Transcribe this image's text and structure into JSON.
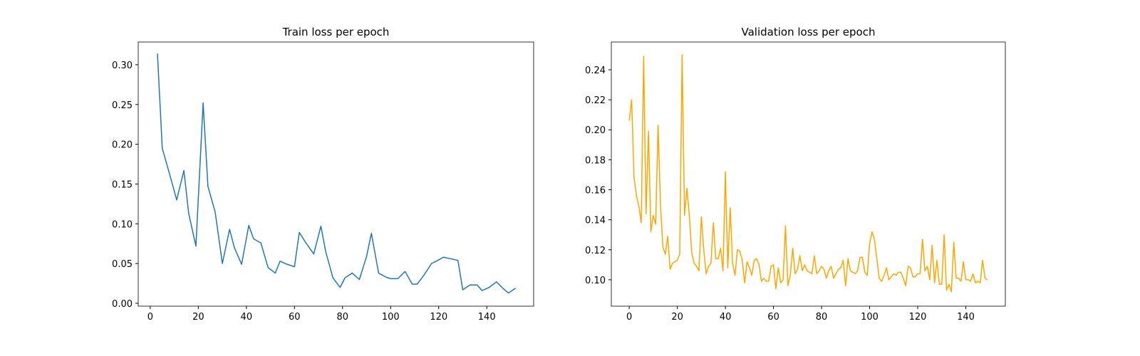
{
  "chart_data": [
    {
      "type": "line",
      "title": "Train loss per epoch",
      "color": "#1f77b4",
      "x": [
        3,
        5,
        8,
        11,
        14,
        16,
        19,
        22,
        24,
        27,
        30,
        33,
        35,
        38,
        41,
        43,
        46,
        49,
        52,
        54,
        57,
        60,
        62,
        65,
        68,
        71,
        73,
        76,
        79,
        81,
        84,
        87,
        90,
        92,
        95,
        98,
        100,
        103,
        106,
        109,
        111,
        114,
        117,
        119,
        122,
        125,
        128,
        130,
        133,
        136,
        138,
        141,
        144,
        147,
        149,
        152
      ],
      "values": [
        0.314,
        0.195,
        0.163,
        0.13,
        0.167,
        0.113,
        0.072,
        0.252,
        0.147,
        0.115,
        0.05,
        0.093,
        0.07,
        0.049,
        0.098,
        0.081,
        0.076,
        0.045,
        0.038,
        0.053,
        0.049,
        0.046,
        0.089,
        0.075,
        0.062,
        0.097,
        0.065,
        0.032,
        0.02,
        0.032,
        0.038,
        0.03,
        0.059,
        0.088,
        0.038,
        0.033,
        0.031,
        0.031,
        0.04,
        0.024,
        0.024,
        0.036,
        0.05,
        0.053,
        0.058,
        0.056,
        0.054,
        0.017,
        0.023,
        0.023,
        0.016,
        0.02,
        0.027,
        0.018,
        0.013,
        0.019
      ],
      "xlim": [
        -5,
        159.5
      ],
      "ylim": [
        -0.0036,
        0.3286
      ],
      "xticks": [
        0,
        20,
        40,
        60,
        80,
        100,
        120,
        140
      ],
      "yticks": [
        {
          "value": 0,
          "label": "0.00"
        },
        {
          "value": 0.05,
          "label": "0.05"
        },
        {
          "value": 0.1,
          "label": "0.10"
        },
        {
          "value": 0.15,
          "label": "0.15"
        },
        {
          "value": 0.2,
          "label": "0.20"
        },
        {
          "value": 0.25,
          "label": "0.25"
        },
        {
          "value": 0.3,
          "label": "0.30"
        }
      ]
    },
    {
      "type": "line",
      "title": "Validation loss per epoch",
      "color": "#ffa500",
      "x": [
        0,
        1,
        2,
        3,
        4,
        5,
        6,
        7,
        8,
        9,
        10,
        11,
        12,
        13,
        14,
        15,
        16,
        17,
        18,
        19,
        20,
        21,
        22,
        23,
        24,
        25,
        26,
        27,
        28,
        29,
        30,
        31,
        32,
        33,
        34,
        35,
        36,
        37,
        38,
        39,
        40,
        41,
        42,
        43,
        44,
        45,
        46,
        47,
        48,
        49,
        50,
        51,
        52,
        53,
        54,
        55,
        56,
        57,
        58,
        59,
        60,
        61,
        62,
        63,
        64,
        65,
        66,
        67,
        68,
        69,
        70,
        71,
        72,
        73,
        74,
        75,
        76,
        77,
        78,
        79,
        80,
        81,
        82,
        83,
        84,
        85,
        86,
        87,
        88,
        89,
        90,
        91,
        92,
        93,
        94,
        95,
        96,
        97,
        98,
        99,
        100,
        101,
        102,
        103,
        104,
        105,
        106,
        107,
        108,
        109,
        110,
        111,
        112,
        113,
        114,
        115,
        116,
        117,
        118,
        119,
        120,
        121,
        122,
        123,
        124,
        125,
        126,
        127,
        128,
        129,
        130,
        131,
        132,
        133,
        134,
        135,
        136,
        137,
        138,
        139,
        140,
        141,
        142,
        143,
        144,
        145,
        146,
        147,
        148,
        149
      ],
      "values": [
        0.206,
        0.22,
        0.168,
        0.156,
        0.149,
        0.138,
        0.249,
        0.144,
        0.199,
        0.132,
        0.143,
        0.137,
        0.203,
        0.15,
        0.122,
        0.117,
        0.129,
        0.107,
        0.111,
        0.112,
        0.113,
        0.117,
        0.25,
        0.143,
        0.161,
        0.143,
        0.118,
        0.111,
        0.109,
        0.106,
        0.142,
        0.12,
        0.104,
        0.109,
        0.111,
        0.138,
        0.114,
        0.114,
        0.121,
        0.106,
        0.172,
        0.108,
        0.148,
        0.111,
        0.103,
        0.12,
        0.119,
        0.113,
        0.098,
        0.112,
        0.108,
        0.103,
        0.113,
        0.114,
        0.11,
        0.099,
        0.101,
        0.099,
        0.099,
        0.109,
        0.11,
        0.094,
        0.108,
        0.098,
        0.1,
        0.136,
        0.096,
        0.103,
        0.121,
        0.104,
        0.107,
        0.116,
        0.106,
        0.11,
        0.106,
        0.105,
        0.104,
        0.116,
        0.104,
        0.106,
        0.109,
        0.107,
        0.101,
        0.106,
        0.109,
        0.101,
        0.104,
        0.107,
        0.108,
        0.113,
        0.096,
        0.114,
        0.106,
        0.105,
        0.104,
        0.106,
        0.115,
        0.115,
        0.105,
        0.103,
        0.124,
        0.132,
        0.127,
        0.114,
        0.101,
        0.099,
        0.103,
        0.108,
        0.1,
        0.102,
        0.104,
        0.103,
        0.105,
        0.105,
        0.101,
        0.096,
        0.109,
        0.108,
        0.102,
        0.102,
        0.104,
        0.104,
        0.127,
        0.106,
        0.109,
        0.1,
        0.123,
        0.098,
        0.113,
        0.097,
        0.097,
        0.13,
        0.093,
        0.097,
        0.092,
        0.125,
        0.101,
        0.101,
        0.099,
        0.112,
        0.1,
        0.1,
        0.099,
        0.104,
        0.098,
        0.099,
        0.098,
        0.113,
        0.101,
        0.1
      ],
      "xlim": [
        -7.45,
        156.45
      ],
      "ylim": [
        0.0824,
        0.2585
      ],
      "xticks": [
        0,
        20,
        40,
        60,
        80,
        100,
        120,
        140
      ],
      "yticks": [
        {
          "value": 0.1,
          "label": "0.10"
        },
        {
          "value": 0.12,
          "label": "0.12"
        },
        {
          "value": 0.14,
          "label": "0.14"
        },
        {
          "value": 0.16,
          "label": "0.16"
        },
        {
          "value": 0.18,
          "label": "0.18"
        },
        {
          "value": 0.2,
          "label": "0.20"
        },
        {
          "value": 0.22,
          "label": "0.22"
        },
        {
          "value": 0.24,
          "label": "0.24"
        }
      ]
    }
  ]
}
